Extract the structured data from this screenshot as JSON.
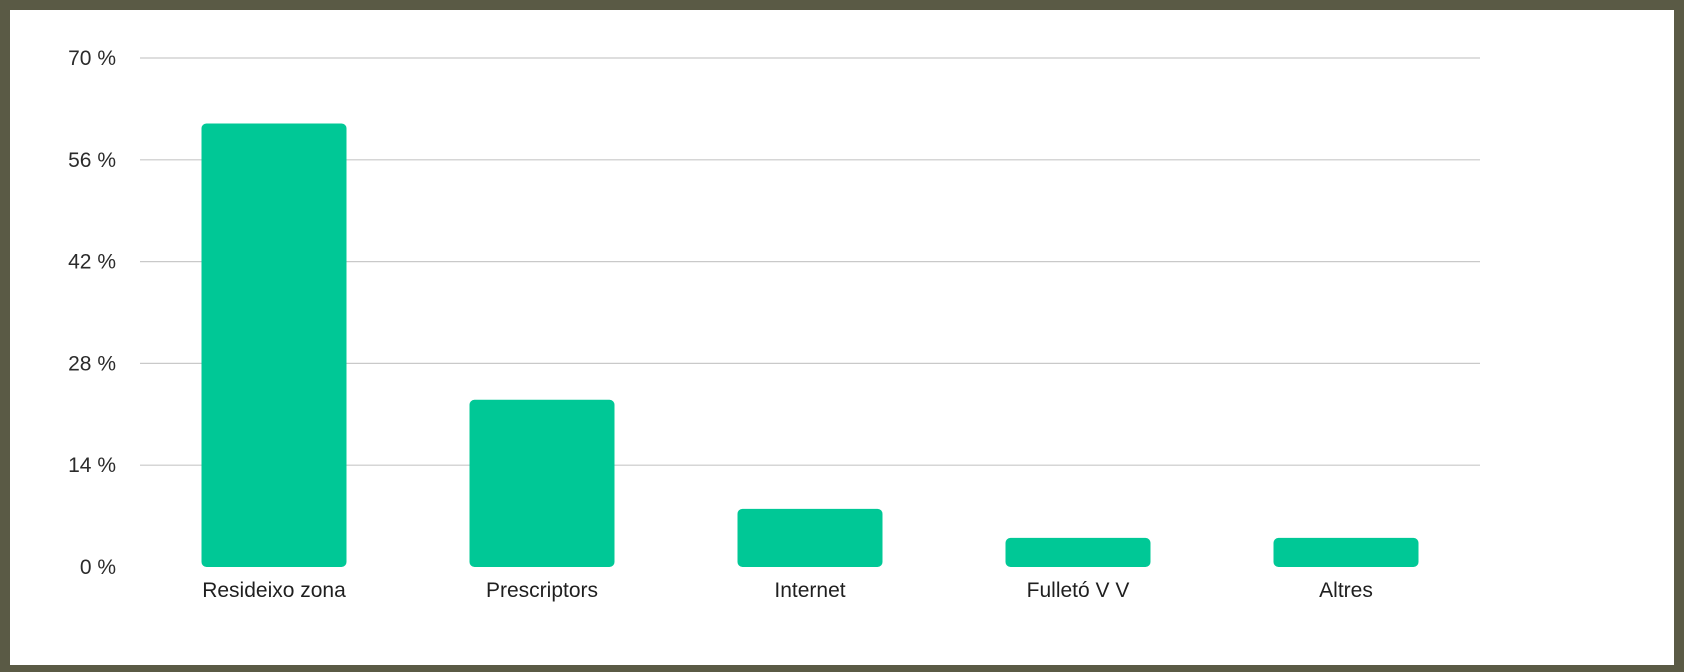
{
  "chart_data": {
    "type": "bar",
    "title": "",
    "xlabel": "",
    "ylabel": "",
    "categories": [
      "Resideixo zona",
      "Prescriptors",
      "Internet",
      "Fulletó V V",
      "Altres"
    ],
    "values": [
      61,
      23,
      8,
      4,
      4
    ],
    "ylim": [
      0,
      70
    ],
    "yticks": [
      0,
      14,
      28,
      42,
      56,
      70
    ],
    "ytick_labels": [
      "0 %",
      "14 %",
      "28 %",
      "42 %",
      "56 %",
      "70 %"
    ],
    "bar_color": "#00c896",
    "grid": true,
    "legend": "none"
  }
}
